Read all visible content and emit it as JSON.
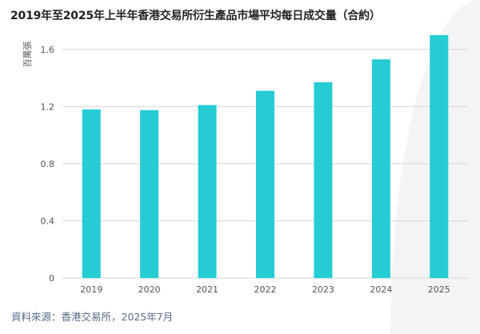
{
  "title": "2019年至2025年上半年香港交易所衍生產品市場平均每日成交量（合約）",
  "source": "資料來源：香港交易所，2025年7月",
  "colors": {
    "bar": "#25ccd4",
    "grid": "#d6d6d6",
    "background_accent": "#f3f4f6"
  },
  "chart_data": {
    "type": "bar",
    "categories": [
      "2019",
      "2020",
      "2021",
      "2022",
      "2023",
      "2024",
      "2025"
    ],
    "values": [
      1.18,
      1.175,
      1.21,
      1.31,
      1.37,
      1.53,
      1.7
    ],
    "title": "2019年至2025年上半年香港交易所衍生產品市場平均每日成交量（合約）",
    "xlabel": "",
    "ylabel": "百萬張",
    "ylim": [
      0,
      1.8
    ],
    "yticks": [
      "0",
      "0.4",
      "0.8",
      "1.2",
      "1.6"
    ],
    "grid": true,
    "legend": "none"
  }
}
